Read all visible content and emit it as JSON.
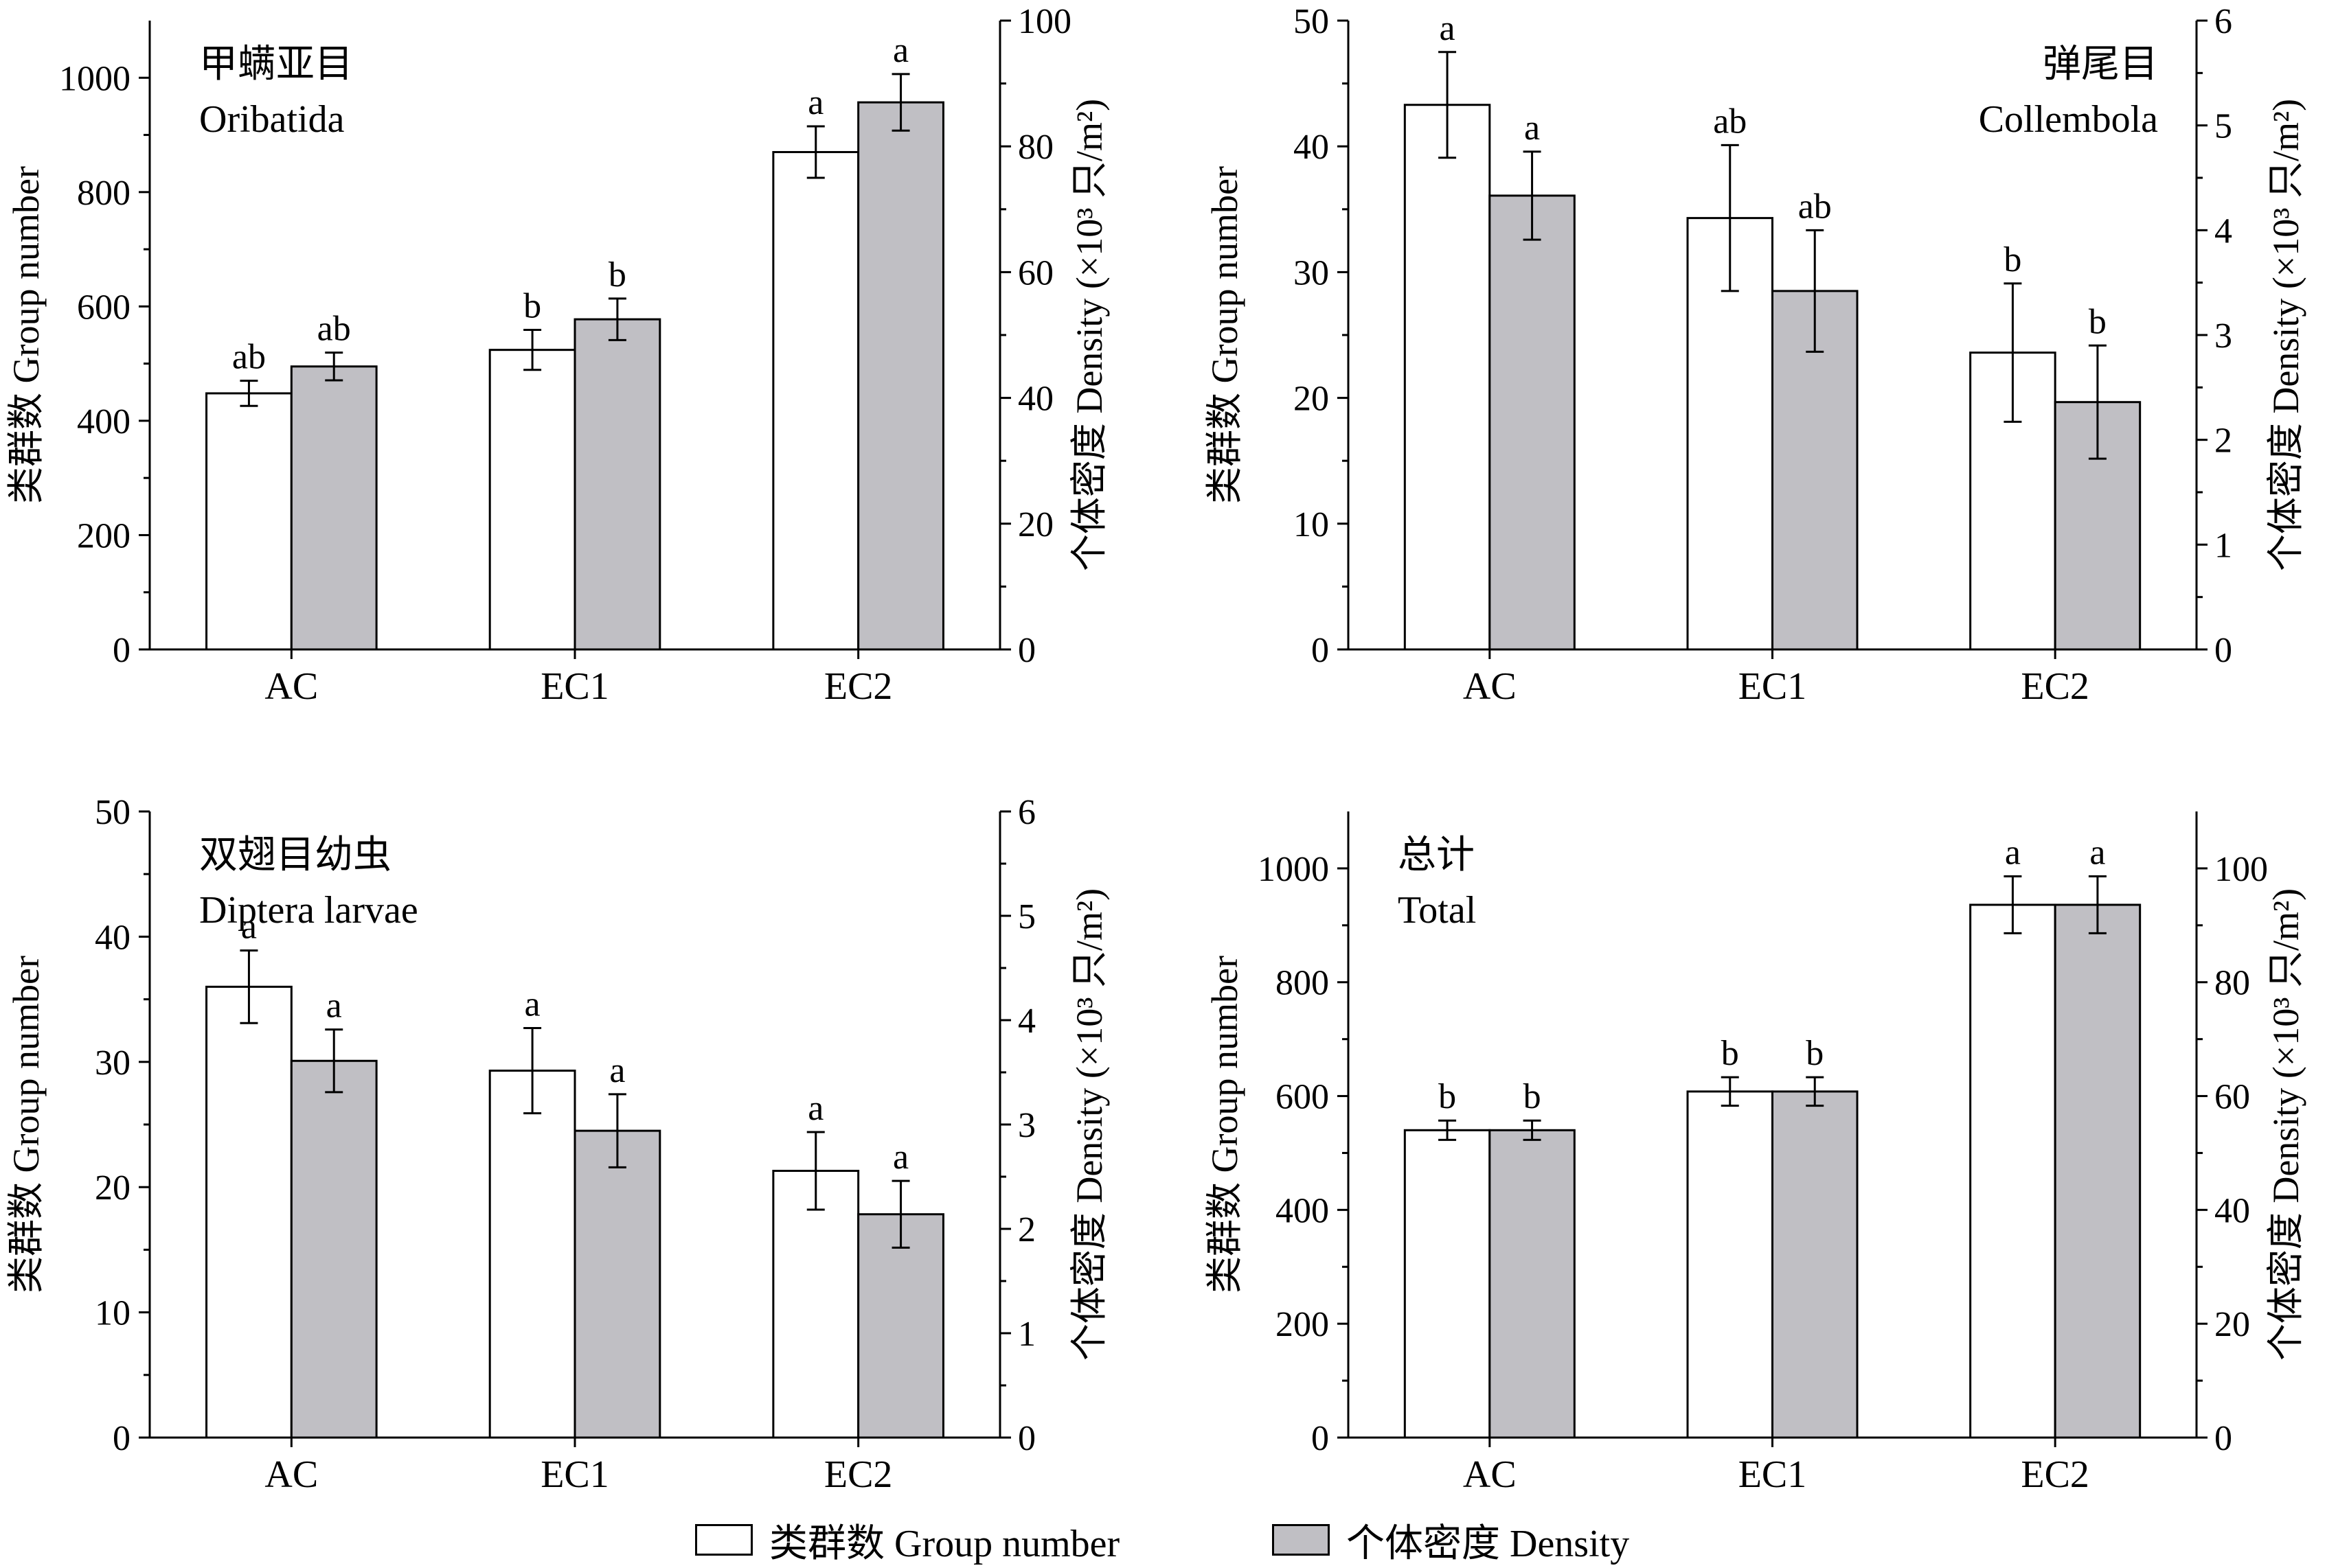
{
  "colors": {
    "group_bar": "#ffffff",
    "density_bar": "#c0bfc4",
    "stroke": "#000000"
  },
  "legend": {
    "group": "类群数 Group number",
    "density": "个体密度 Density"
  },
  "chart_data": [
    {
      "type": "bar",
      "title_cn": "甲螨亚目",
      "title_en": "Oribatida",
      "title_align": "left",
      "categories": [
        "AC",
        "EC1",
        "EC2"
      ],
      "ylabel": "类群数 Group number",
      "ylabel2": "个体密度 Density (×10³ 只/m²)",
      "ylim": [
        0,
        1100
      ],
      "yticks": [
        0,
        200,
        400,
        600,
        800,
        1000
      ],
      "y2lim": [
        0,
        100
      ],
      "y2ticks": [
        0,
        20,
        40,
        60,
        80,
        100
      ],
      "series": [
        {
          "name": "类群数 Group number",
          "axis": "left",
          "values": [
            448,
            524,
            870
          ],
          "errors": [
            22,
            35,
            45
          ],
          "letters": [
            "ab",
            "b",
            "a"
          ]
        },
        {
          "name": "个体密度 Density",
          "axis": "right",
          "values": [
            45,
            52.5,
            87
          ],
          "errors": [
            2.2,
            3.3,
            4.5
          ],
          "letters": [
            "ab",
            "b",
            "a"
          ]
        }
      ]
    },
    {
      "type": "bar",
      "title_cn": "弹尾目",
      "title_en": "Collembola",
      "title_align": "right",
      "categories": [
        "AC",
        "EC1",
        "EC2"
      ],
      "ylabel": "类群数 Group number",
      "ylabel2": "个体密度 Density (×10³ 只/m²)",
      "ylim": [
        0,
        50
      ],
      "yticks": [
        0,
        10,
        20,
        30,
        40,
        50
      ],
      "y2lim": [
        0,
        6
      ],
      "y2ticks": [
        0,
        1,
        2,
        3,
        4,
        5,
        6
      ],
      "series": [
        {
          "name": "类群数 Group number",
          "axis": "left",
          "values": [
            43.3,
            34.3,
            23.6
          ],
          "errors": [
            4.2,
            5.8,
            5.5
          ],
          "letters": [
            "a",
            "ab",
            "b"
          ]
        },
        {
          "name": "个体密度 Density",
          "axis": "right",
          "values": [
            4.33,
            3.42,
            2.36
          ],
          "errors": [
            0.42,
            0.58,
            0.54
          ],
          "letters": [
            "a",
            "ab",
            "b"
          ]
        }
      ]
    },
    {
      "type": "bar",
      "title_cn": "双翅目幼虫",
      "title_en": "Diptera larvae",
      "title_align": "left",
      "categories": [
        "AC",
        "EC1",
        "EC2"
      ],
      "ylabel": "类群数 Group number",
      "ylabel2": "个体密度 Density (×10³ 只/m²)",
      "ylim": [
        0,
        50
      ],
      "yticks": [
        0,
        10,
        20,
        30,
        40,
        50
      ],
      "y2lim": [
        0,
        6
      ],
      "y2ticks": [
        0,
        1,
        2,
        3,
        4,
        5,
        6
      ],
      "series": [
        {
          "name": "类群数 Group number",
          "axis": "left",
          "values": [
            36,
            29.3,
            21.3
          ],
          "errors": [
            2.9,
            3.4,
            3.1
          ],
          "letters": [
            "a",
            "a",
            "a"
          ]
        },
        {
          "name": "个体密度 Density",
          "axis": "right",
          "values": [
            3.61,
            2.94,
            2.14
          ],
          "errors": [
            0.3,
            0.35,
            0.32
          ],
          "letters": [
            "a",
            "a",
            "a"
          ]
        }
      ]
    },
    {
      "type": "bar",
      "title_cn": "总计",
      "title_en": "Total",
      "title_align": "left",
      "categories": [
        "AC",
        "EC1",
        "EC2"
      ],
      "ylabel": "类群数 Group number",
      "ylabel2": "个体密度 Density (×10³ 只/m²)",
      "ylim": [
        0,
        1100
      ],
      "yticks": [
        0,
        200,
        400,
        600,
        800,
        1000
      ],
      "y2lim": [
        0,
        110
      ],
      "y2ticks": [
        0,
        20,
        40,
        60,
        80,
        100
      ],
      "series": [
        {
          "name": "类群数 Group number",
          "axis": "left",
          "values": [
            540,
            608,
            936
          ],
          "errors": [
            17,
            25,
            50
          ],
          "letters": [
            "b",
            "b",
            "a"
          ]
        },
        {
          "name": "个体密度 Density",
          "axis": "right",
          "values": [
            54,
            60.8,
            93.6
          ],
          "errors": [
            1.7,
            2.5,
            5
          ],
          "letters": [
            "b",
            "b",
            "a"
          ]
        }
      ]
    }
  ]
}
